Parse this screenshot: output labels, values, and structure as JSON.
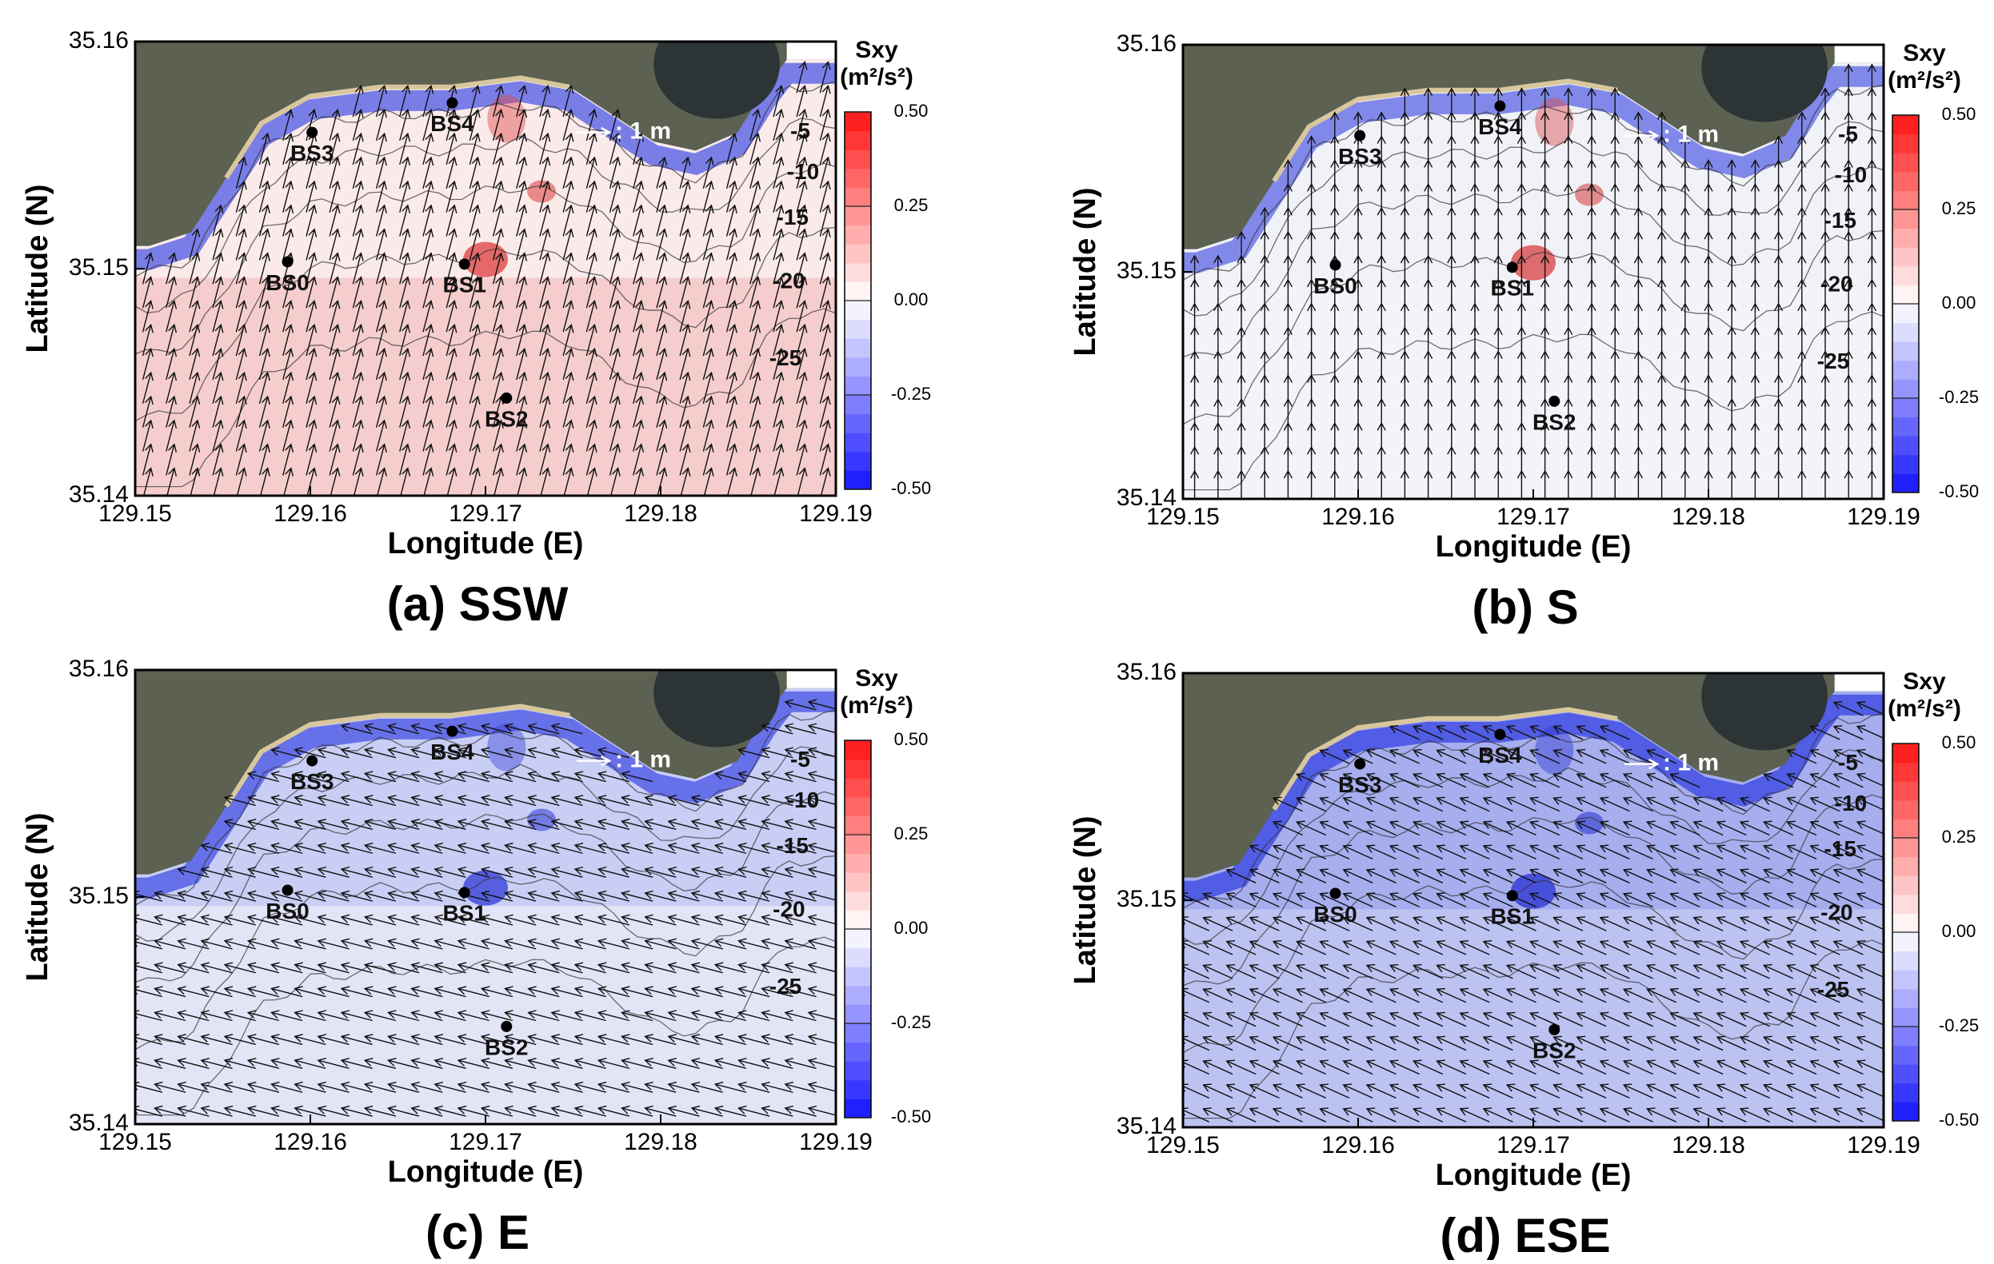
{
  "chart_data": [
    {
      "type": "field",
      "title": "(a) SSW",
      "xlabel": "Longitude (E)",
      "ylabel": "Latitude (N)",
      "xlim": [
        129.15,
        129.19
      ],
      "ylim": [
        35.14,
        35.16
      ],
      "xticks": [
        129.15,
        129.16,
        129.17,
        129.18,
        129.19
      ],
      "yticks": [
        35.14,
        35.15,
        35.16
      ],
      "colorbar": {
        "title": "Sxy",
        "unit": "(m²/s²)",
        "clim": [
          -0.5,
          0.5
        ],
        "ticks": [
          {
            "value": 0.5,
            "label": "0.50"
          },
          0.25,
          {
            "value": 0,
            "label": "0.00"
          },
          -0.25,
          {
            "value": -0.5,
            "label": "-0.50"
          }
        ]
      },
      "vector_scale_label": ": 1 m",
      "depth_labels": [
        -5,
        -10,
        -15,
        -20,
        -25
      ],
      "stations": [
        {
          "name": "BS0",
          "lon": 129.1587,
          "lat": 35.1503
        },
        {
          "name": "BS1",
          "lon": 129.1688,
          "lat": 35.1502
        },
        {
          "name": "BS2",
          "lon": 129.1712,
          "lat": 35.1443
        },
        {
          "name": "BS3",
          "lon": 129.1601,
          "lat": 35.156
        },
        {
          "name": "BS4",
          "lon": 129.1681,
          "lat": 35.1573
        }
      ]
    },
    {
      "type": "field",
      "title": "(b) S",
      "xlabel": "Longitude (E)",
      "ylabel": "Latitude (N)",
      "xlim": [
        129.15,
        129.19
      ],
      "ylim": [
        35.14,
        35.16
      ],
      "xticks": [
        129.15,
        129.16,
        129.17,
        129.18,
        129.19
      ],
      "yticks": [
        35.14,
        35.15,
        35.16
      ],
      "colorbar": {
        "title": "Sxy",
        "unit": "(m²/s²)",
        "clim": [
          -0.5,
          0.5
        ],
        "ticks": [
          {
            "value": 0.5,
            "label": "0.50"
          },
          0.25,
          {
            "value": 0,
            "label": "0.00"
          },
          -0.25,
          {
            "value": -0.5,
            "label": "-0.50"
          }
        ]
      },
      "vector_scale_label": ": 1 m",
      "depth_labels": [
        -5,
        -10,
        -15,
        -20,
        -25
      ],
      "stations": [
        {
          "name": "BS0",
          "lon": 129.1587,
          "lat": 35.1503
        },
        {
          "name": "BS1",
          "lon": 129.1688,
          "lat": 35.1502
        },
        {
          "name": "BS2",
          "lon": 129.1712,
          "lat": 35.1443
        },
        {
          "name": "BS3",
          "lon": 129.1601,
          "lat": 35.156
        },
        {
          "name": "BS4",
          "lon": 129.1681,
          "lat": 35.1573
        }
      ]
    },
    {
      "type": "field",
      "title": "(c) E",
      "xlabel": "Longitude (E)",
      "ylabel": "Latitude (N)",
      "xlim": [
        129.15,
        129.19
      ],
      "ylim": [
        35.14,
        35.16
      ],
      "xticks": [
        129.15,
        129.16,
        129.17,
        129.18,
        129.19
      ],
      "yticks": [
        35.14,
        35.15,
        35.16
      ],
      "colorbar": {
        "title": "Sxy",
        "unit": "(m²/s²)",
        "clim": [
          -0.5,
          0.5
        ],
        "ticks": [
          {
            "value": 0.5,
            "label": "0.50"
          },
          0.25,
          {
            "value": 0,
            "label": "0.00"
          },
          -0.25,
          {
            "value": -0.5,
            "label": "-0.50"
          }
        ]
      },
      "vector_scale_label": ": 1 m",
      "depth_labels": [
        -5,
        -10,
        -15,
        -20,
        -25
      ],
      "stations": [
        {
          "name": "BS0",
          "lon": 129.1587,
          "lat": 35.1503
        },
        {
          "name": "BS1",
          "lon": 129.1688,
          "lat": 35.1502
        },
        {
          "name": "BS2",
          "lon": 129.1712,
          "lat": 35.1443
        },
        {
          "name": "BS3",
          "lon": 129.1601,
          "lat": 35.156
        },
        {
          "name": "BS4",
          "lon": 129.1681,
          "lat": 35.1573
        }
      ]
    },
    {
      "type": "field",
      "title": "(d) ESE",
      "xlabel": "Longitude (E)",
      "ylabel": "Latitude (N)",
      "xlim": [
        129.15,
        129.19
      ],
      "ylim": [
        35.14,
        35.16
      ],
      "xticks": [
        129.15,
        129.16,
        129.17,
        129.18,
        129.19
      ],
      "yticks": [
        35.14,
        35.15,
        35.16
      ],
      "colorbar": {
        "title": "Sxy",
        "unit": "(m²/s²)",
        "clim": [
          -0.5,
          0.5
        ],
        "ticks": [
          {
            "value": 0.5,
            "label": "0.50"
          },
          0.25,
          {
            "value": 0,
            "label": "0.00"
          },
          -0.25,
          {
            "value": -0.5,
            "label": "-0.50"
          }
        ]
      },
      "vector_scale_label": ": 1 m",
      "depth_labels": [
        -5,
        -10,
        -15,
        -20,
        -25
      ],
      "stations": [
        {
          "name": "BS0",
          "lon": 129.1587,
          "lat": 35.1503
        },
        {
          "name": "BS1",
          "lon": 129.1688,
          "lat": 35.1502
        },
        {
          "name": "BS2",
          "lon": 129.1712,
          "lat": 35.1443
        },
        {
          "name": "BS3",
          "lon": 129.1601,
          "lat": 35.156
        },
        {
          "name": "BS4",
          "lon": 129.1681,
          "lat": 35.1573
        }
      ]
    }
  ]
}
